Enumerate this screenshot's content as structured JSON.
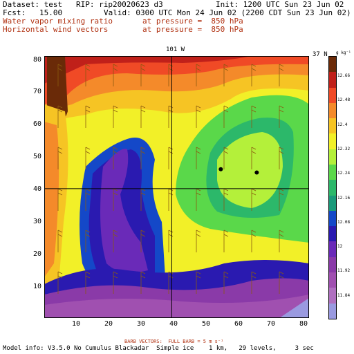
{
  "header": {
    "dataset_line": "Dataset: test   RIP: rip20020623 d3",
    "init_line": "Init: 1200 UTC Sun 23 Jun 02",
    "fcst_line": "Fcst:   15.00",
    "valid_line": "Valid: 0300 UTC Mon 24 Jun 02 (2200 CDT Sun 23 Jun 02)",
    "field1_name": "Water vapor mixing ratio",
    "field1_level": "at pressure =  850 hPa",
    "field2_name": "Horizontal wind vectors",
    "field2_level": "at pressure =  850 hPa"
  },
  "map": {
    "longitude_label": "101 W",
    "latitude_label": "37 N",
    "units_label": "g kg⁻¹",
    "x_ticks": [
      "10",
      "20",
      "30",
      "40",
      "50",
      "60",
      "70",
      "80"
    ],
    "y_ticks": [
      "80",
      "70",
      "60",
      "50",
      "40",
      "30",
      "20",
      "10"
    ],
    "x_range": [
      1,
      82
    ],
    "y_range": [
      1,
      82
    ],
    "reference_x": 40,
    "reference_y": 41,
    "points": [
      {
        "x": 55,
        "y": 47
      },
      {
        "x": 66,
        "y": 46
      }
    ]
  },
  "colorbar": {
    "labels": [
      "12.66",
      "12.48",
      "12.4",
      "12.32",
      "12.24",
      "12.16",
      "12.08",
      "12",
      "11.92",
      "11.84"
    ],
    "colors": [
      "#6a2a08",
      "#c0201a",
      "#f04a26",
      "#f48a2a",
      "#f6c424",
      "#f2f028",
      "#b4f03a",
      "#5ad84a",
      "#2cb86a",
      "#1a9a7a",
      "#1448c8",
      "#2a1ab0",
      "#6a2ab8",
      "#8a3aa8",
      "#a050b0",
      "#b070c0",
      "#9a9ae0"
    ]
  },
  "footer": {
    "barb_note": "BARB VECTORS:  FULL BARB = 5 m s⁻¹",
    "model_info": "Model info: V3.5.0 No Cumulus Blackadar  Simple ice    1 km,   29 levels,     3 sec"
  }
}
